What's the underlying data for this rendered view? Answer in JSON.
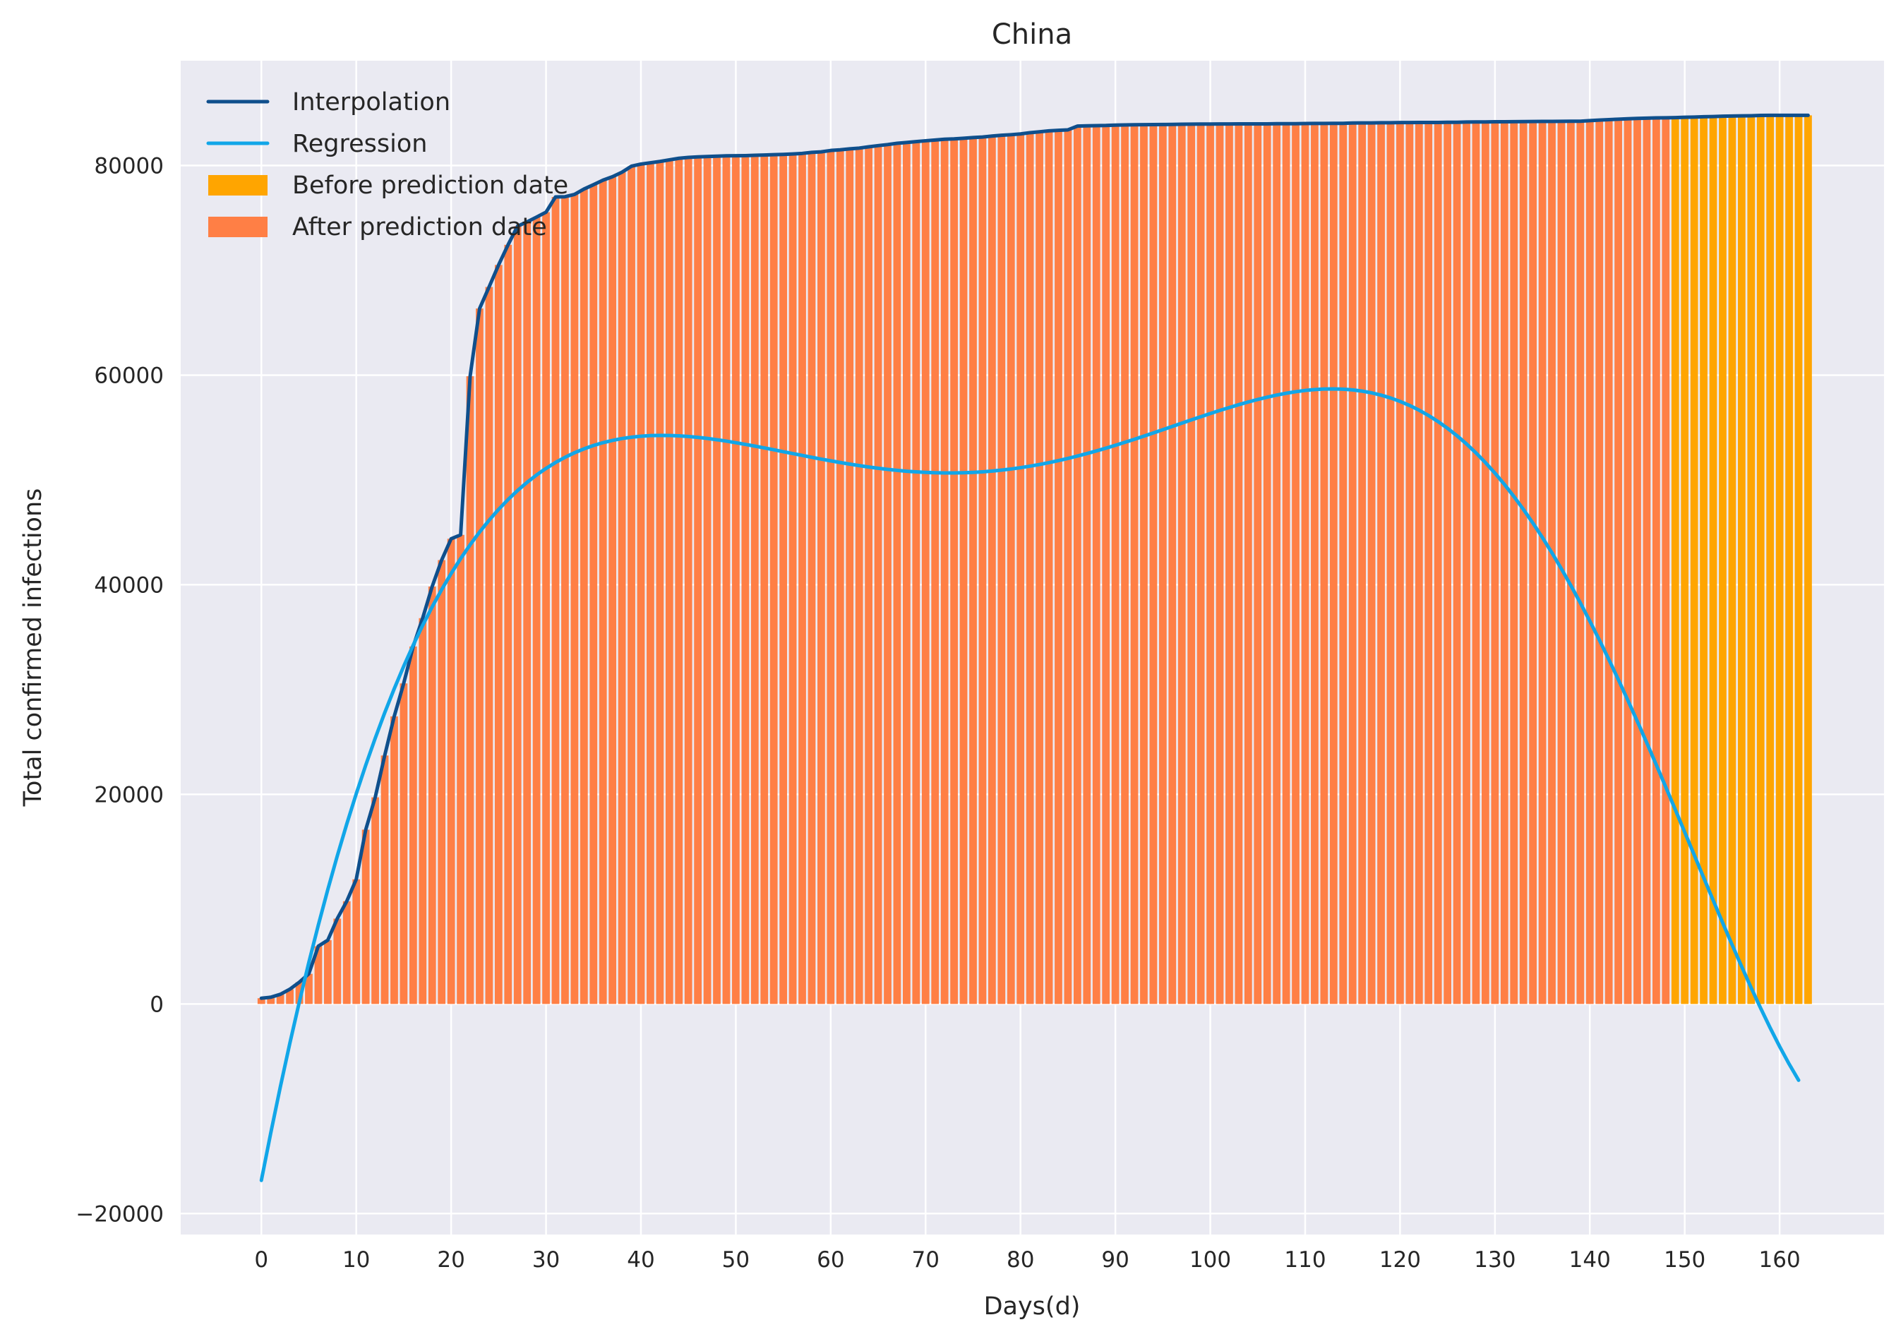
{
  "chart_data": {
    "type": "bar",
    "title": "China",
    "xlabel": "Days(d)",
    "ylabel": "Total confirmed infections",
    "xlim": [
      -8.5,
      171
    ],
    "ylim": [
      -22000,
      90000
    ],
    "xticks": [
      0,
      10,
      20,
      30,
      40,
      50,
      60,
      70,
      80,
      90,
      100,
      110,
      120,
      130,
      140,
      150,
      160
    ],
    "yticks": [
      -20000,
      0,
      20000,
      40000,
      60000,
      80000
    ],
    "grid": true,
    "legend_position": "top-left",
    "prediction_split_day": 149,
    "legend": [
      {
        "label": "Interpolation",
        "kind": "line",
        "color": "#0f4f8c"
      },
      {
        "label": "Regression",
        "kind": "line",
        "color": "#11a6e8"
      },
      {
        "label": "Before prediction date",
        "kind": "patch",
        "color": "#ffa500"
      },
      {
        "label": "After prediction date",
        "kind": "patch",
        "color": "#ff7f45"
      }
    ],
    "colors": {
      "background": "#eaeaf2",
      "grid": "#ffffff",
      "bar_before": "#ffa500",
      "bar_after": "#ff7f45",
      "interpolation": "#0f4f8c",
      "regression": "#11a6e8"
    },
    "series": [
      {
        "name": "Interpolation",
        "values": [
          548,
          643,
          920,
          1406,
          2075,
          2877,
          5509,
          6087,
          8141,
          9802,
          11891,
          16630,
          19716,
          23707,
          27440,
          30587,
          34110,
          36814,
          39829,
          42354,
          44386,
          44759,
          59895,
          66358,
          68413,
          70513,
          72434,
          74211,
          74619,
          75077,
          75550,
          77001,
          77022,
          77241,
          77754,
          78166,
          78600,
          78928,
          79356,
          79932,
          80136,
          80261,
          80386,
          80537,
          80690,
          80770,
          80823,
          80860,
          80887,
          80921,
          80932,
          80945,
          80977,
          81003,
          81033,
          81058,
          81102,
          81156,
          81250,
          81305,
          81435,
          81498,
          81591,
          81661,
          81782,
          81897,
          81999,
          82122,
          82198,
          82279,
          82361,
          82432,
          82511,
          82543,
          82602,
          82665,
          82718,
          82809,
          82883,
          82941,
          83014,
          83134,
          83213,
          83306,
          83356,
          83403,
          83760,
          83787,
          83805,
          83817,
          83853,
          83868,
          83884,
          83899,
          83909,
          83912,
          83918,
          83940,
          83944,
          83956,
          83959,
          83964,
          83966,
          83968,
          83970,
          83975,
          83976,
          83990,
          83990,
          83990,
          84010,
          84011,
          84016,
          84022,
          84024,
          84054,
          84063,
          84063,
          84081,
          84084,
          84095,
          84102,
          84103,
          84106,
          84106,
          84123,
          84128,
          84146,
          84154,
          84160,
          84171,
          84177,
          84186,
          84191,
          84198,
          84204,
          84209,
          84216,
          84228,
          84228,
          84286,
          84335,
          84378,
          84422,
          84458,
          84494,
          84522,
          84543,
          84553,
          84572,
          84602,
          84624,
          84653,
          84673,
          84701,
          84725,
          84737,
          84749,
          84780,
          84786,
          84786,
          84786,
          84786,
          84786
        ]
      },
      {
        "name": "Regression",
        "values": [
          -16833,
          -12264,
          -7908,
          -3759,
          189,
          3946,
          7516,
          10907,
          14124,
          17172,
          20057,
          22785,
          25360,
          27787,
          30073,
          32221,
          34237,
          36125,
          37890,
          39537,
          41070,
          42495,
          43814,
          45033,
          46156,
          47187,
          48131,
          48990,
          49769,
          50472,
          51102,
          51663,
          52158,
          52592,
          52966,
          53286,
          53554,
          53773,
          53947,
          54078,
          54170,
          54226,
          54249,
          54241,
          54205,
          54144,
          54061,
          53958,
          53837,
          53702,
          53553,
          53394,
          53227,
          53054,
          52876,
          52696,
          52516,
          52337,
          52160,
          51988,
          51821,
          51661,
          51509,
          51367,
          51235,
          51114,
          51006,
          50912,
          50831,
          50766,
          50716,
          50682,
          50665,
          50665,
          50683,
          50719,
          50773,
          50845,
          50935,
          51043,
          51169,
          51313,
          51473,
          51651,
          51845,
          52054,
          52278,
          52516,
          52767,
          53030,
          53304,
          53588,
          53880,
          54179,
          54484,
          54793,
          55104,
          55416,
          55726,
          56032,
          56333,
          56626,
          56909,
          57180,
          57437,
          57677,
          57897,
          58096,
          58271,
          58419,
          58537,
          58623,
          58674,
          58687,
          58660,
          58589,
          58472,
          58307,
          58090,
          57819,
          57492,
          57106,
          56659,
          56149,
          55573,
          54930,
          54218,
          53435,
          52580,
          51652,
          50649,
          49571,
          48418,
          47189,
          45885,
          44506,
          43053,
          41527,
          39929,
          38262,
          36528,
          34730,
          32872,
          30957,
          28989,
          26974,
          24917,
          22823,
          20699,
          18552,
          16388,
          14216,
          12045,
          9885,
          7744,
          5634,
          3565,
          1549,
          -402,
          -2275,
          -4056,
          -5728,
          -7273
        ]
      }
    ]
  }
}
